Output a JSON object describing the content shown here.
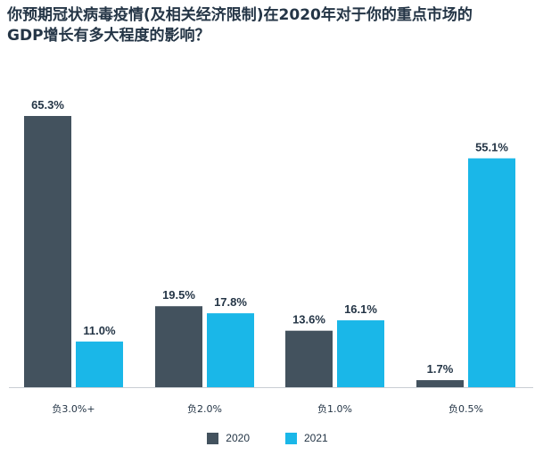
{
  "title_lines": [
    "你预期冠状病毒疫情(及相关经济限制)在2020年对于你的重点市场的",
    "GDP增长有多大程度的影响？"
  ],
  "chart_data": {
    "type": "bar",
    "title": "你预期冠状病毒疫情(及相关经济限制)在2020年对于你的重点市场的GDP增长有多大程度的影响？",
    "categories": [
      "负3.0%+",
      "负2.0%",
      "负1.0%",
      "负0.5%"
    ],
    "series": [
      {
        "name": "2020",
        "color": "#43525e",
        "values": [
          65.3,
          19.5,
          13.6,
          1.7
        ]
      },
      {
        "name": "2021",
        "color": "#1ab7e8",
        "values": [
          11.0,
          17.8,
          16.1,
          55.1
        ]
      }
    ],
    "value_suffix": "%",
    "ylim": [
      0,
      70
    ],
    "grid": false,
    "legend_position": "bottom-center"
  }
}
